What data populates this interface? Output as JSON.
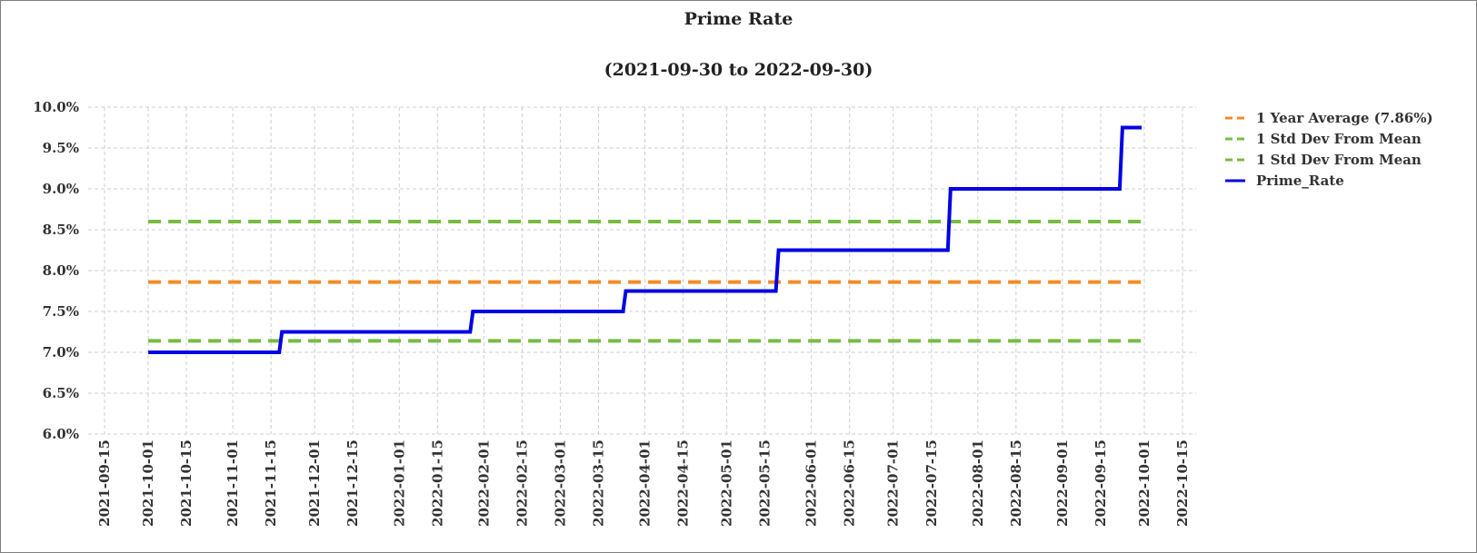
{
  "chart_data": {
    "type": "line",
    "title": "Prime Rate",
    "subtitle": "(2021-09-30 to 2022-09-30)",
    "xlabel": "",
    "ylabel": "",
    "ylim": [
      6.0,
      10.0
    ],
    "xlim": [
      "2021-09-09",
      "2022-10-20"
    ],
    "y_ticks": [
      6.0,
      6.5,
      7.0,
      7.5,
      8.0,
      8.5,
      9.0,
      9.5,
      10.0
    ],
    "y_tick_labels": [
      "6.0%",
      "6.5%",
      "7.0%",
      "7.5%",
      "8.0%",
      "8.5%",
      "9.0%",
      "9.5%",
      "10.0%"
    ],
    "x_ticks": [
      "2021-09-15",
      "2021-10-01",
      "2021-10-15",
      "2021-11-01",
      "2021-11-15",
      "2021-12-01",
      "2021-12-15",
      "2022-01-01",
      "2022-01-15",
      "2022-02-01",
      "2022-02-15",
      "2022-03-01",
      "2022-03-15",
      "2022-04-01",
      "2022-04-15",
      "2022-05-01",
      "2022-05-15",
      "2022-06-01",
      "2022-06-15",
      "2022-07-01",
      "2022-07-15",
      "2022-08-01",
      "2022-08-15",
      "2022-09-01",
      "2022-09-15",
      "2022-10-01",
      "2022-10-15"
    ],
    "grid": true,
    "legend_position": "right",
    "series": [
      {
        "name": "1 Year Average (7.86%)",
        "style": "dashed",
        "color": "#f28c28",
        "x": [
          "2021-10-01",
          "2022-09-30"
        ],
        "y": [
          7.86,
          7.86
        ]
      },
      {
        "name": "1 Std Dev From Mean",
        "style": "dashed",
        "color": "#77bc43",
        "x": [
          "2021-10-01",
          "2022-09-30"
        ],
        "y": [
          8.6,
          8.6
        ]
      },
      {
        "name": "1 Std Dev From Mean",
        "style": "dashed",
        "color": "#77bc43",
        "x": [
          "2021-10-01",
          "2022-09-30"
        ],
        "y": [
          7.14,
          7.14
        ]
      },
      {
        "name": "Prime_Rate",
        "style": "solid",
        "color": "#0000e6",
        "x": [
          "2021-10-01",
          "2021-11-18",
          "2021-11-19",
          "2022-01-27",
          "2022-01-28",
          "2022-03-24",
          "2022-03-25",
          "2022-05-19",
          "2022-05-20",
          "2022-07-21",
          "2022-07-22",
          "2022-09-22",
          "2022-09-23",
          "2022-09-30"
        ],
        "y": [
          7.0,
          7.0,
          7.25,
          7.25,
          7.5,
          7.5,
          7.75,
          7.75,
          8.25,
          8.25,
          9.0,
          9.0,
          9.75,
          9.75
        ]
      }
    ]
  }
}
